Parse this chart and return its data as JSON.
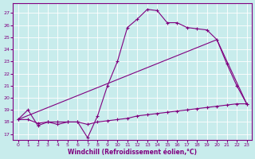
{
  "xlabel": "Windchill (Refroidissement éolien,°C)",
  "bg_color": "#c8ecec",
  "line_color": "#800080",
  "xlim": [
    -0.5,
    23.5
  ],
  "ylim": [
    16.5,
    27.8
  ],
  "xticks": [
    0,
    1,
    2,
    3,
    4,
    5,
    6,
    7,
    8,
    9,
    10,
    11,
    12,
    13,
    14,
    15,
    16,
    17,
    18,
    19,
    20,
    21,
    22,
    23
  ],
  "yticks": [
    17,
    18,
    19,
    20,
    21,
    22,
    23,
    24,
    25,
    26,
    27
  ],
  "line1_x": [
    0,
    1,
    2,
    3,
    4,
    5,
    6,
    7,
    8,
    9,
    10,
    11,
    12,
    13,
    14,
    15,
    16,
    17,
    18,
    19,
    20,
    21,
    22,
    23
  ],
  "line1_y": [
    18.2,
    19.0,
    17.7,
    18.0,
    17.8,
    18.0,
    18.0,
    16.7,
    18.5,
    21.0,
    23.0,
    25.8,
    26.5,
    27.3,
    27.2,
    26.2,
    26.2,
    25.8,
    25.7,
    25.6,
    24.8,
    22.8,
    21.0,
    19.5
  ],
  "line2_x": [
    0,
    20,
    23
  ],
  "line2_y": [
    18.2,
    24.8,
    19.5
  ],
  "line3_x": [
    0,
    1,
    2,
    3,
    4,
    5,
    6,
    7,
    8,
    9,
    10,
    11,
    12,
    13,
    14,
    15,
    16,
    17,
    18,
    19,
    20,
    21,
    22,
    23
  ],
  "line3_y": [
    18.2,
    18.2,
    17.9,
    18.0,
    18.0,
    18.0,
    18.0,
    17.8,
    18.0,
    18.1,
    18.2,
    18.3,
    18.5,
    18.6,
    18.7,
    18.8,
    18.9,
    19.0,
    19.1,
    19.2,
    19.3,
    19.4,
    19.5,
    19.5
  ]
}
